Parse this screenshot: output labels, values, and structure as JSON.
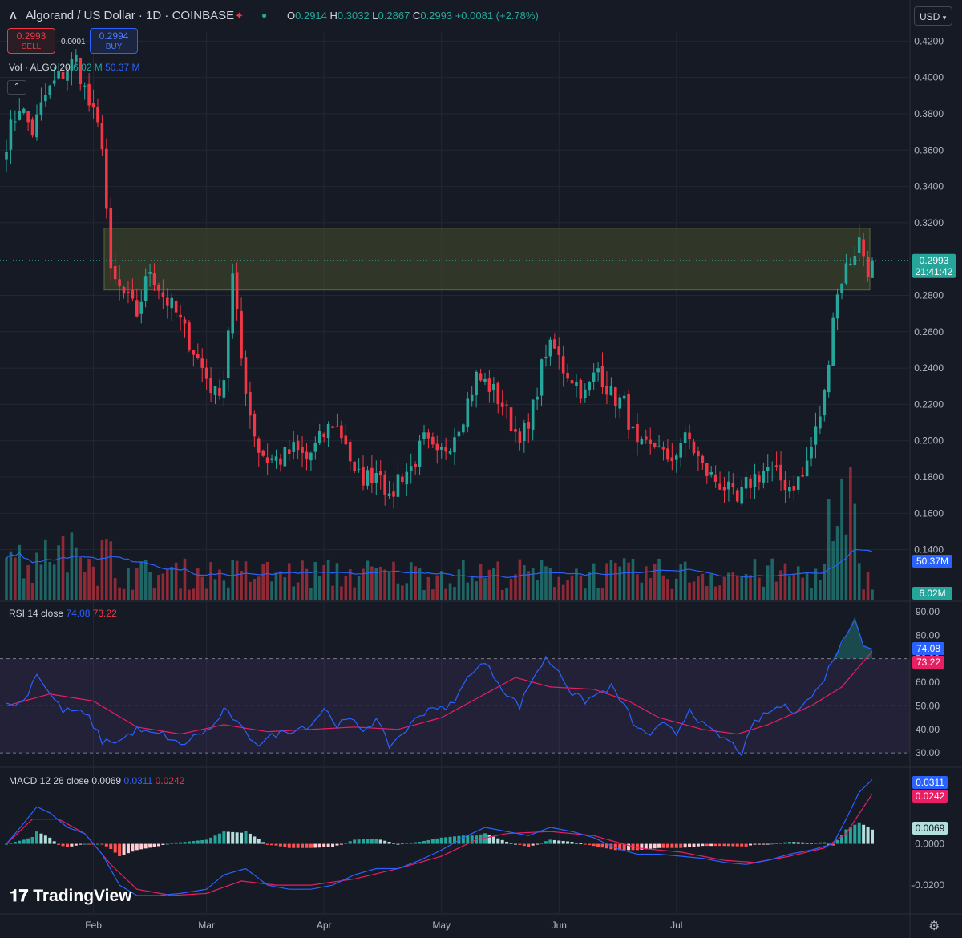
{
  "header": {
    "symbol_title": "Algorand / US Dollar · 1D · COINBASE",
    "ohlc": {
      "o_label": "O",
      "o": "0.2914",
      "h_label": "H",
      "h": "0.3032",
      "l_label": "L",
      "l": "0.2867",
      "c_label": "C",
      "c": "0.2993",
      "change": "+0.0081 (+2.78%)"
    },
    "currency": "USD"
  },
  "trade": {
    "sell_price": "0.2993",
    "sell_label": "SELL",
    "spread": "0.0001",
    "buy_price": "0.2994",
    "buy_label": "BUY"
  },
  "volume_legend": {
    "label": "Vol · ALGO 20",
    "value": "6.02 M",
    "ma": "50.37 M"
  },
  "rsi_legend": {
    "label": "RSI 14 close",
    "rsi": "74.08",
    "ma": "73.22"
  },
  "macd_legend": {
    "label": "MACD 12 26 close",
    "hist": "0.0069",
    "macd": "0.0311",
    "signal": "0.0242"
  },
  "price_labels": {
    "last": "0.2993",
    "countdown": "21:41:42",
    "vol_ma": "50.37M",
    "vol": "6.02M",
    "rsi": "74.08",
    "rsi_ma": "73.22",
    "macd": "0.0311",
    "signal": "0.0242",
    "hist": "0.0069"
  },
  "branding": "TradingView",
  "colors": {
    "background": "#161a25",
    "up": "#26a69a",
    "down": "#f23645",
    "rsi_line": "#2962ff",
    "rsi_ma": "#e91e63",
    "macd_line": "#2962ff",
    "signal_line": "#e91e63",
    "zone_fill": "#434a2c",
    "grid": "#232734"
  },
  "chart_data": [
    {
      "type": "candlestick",
      "title": "Algorand / US Dollar · 1D · COINBASE",
      "y_ticks": [
        "0.4200",
        "0.4000",
        "0.3800",
        "0.3600",
        "0.3400",
        "0.3200",
        "0.2800",
        "0.2600",
        "0.2400",
        "0.2200",
        "0.2000",
        "0.1800",
        "0.1600",
        "0.1400"
      ],
      "ylim": [
        0.135,
        0.425
      ],
      "x_ticks": [
        "Feb",
        "Mar",
        "Apr",
        "May",
        "Jun",
        "Jul"
      ],
      "supply_zone": [
        0.283,
        0.317
      ],
      "last_price": 0.2993,
      "close_anchors": [
        [
          0,
          0.365
        ],
        [
          3,
          0.385
        ],
        [
          6,
          0.37
        ],
        [
          9,
          0.39
        ],
        [
          12,
          0.4
        ],
        [
          16,
          0.41
        ],
        [
          19,
          0.385
        ],
        [
          22,
          0.365
        ],
        [
          24,
          0.29
        ],
        [
          27,
          0.28
        ],
        [
          30,
          0.27
        ],
        [
          33,
          0.295
        ],
        [
          36,
          0.28
        ],
        [
          39,
          0.27
        ],
        [
          42,
          0.255
        ],
        [
          45,
          0.24
        ],
        [
          48,
          0.225
        ],
        [
          50,
          0.235
        ],
        [
          52,
          0.29
        ],
        [
          54,
          0.245
        ],
        [
          56,
          0.215
        ],
        [
          58,
          0.195
        ],
        [
          60,
          0.19
        ],
        [
          63,
          0.19
        ],
        [
          66,
          0.195
        ],
        [
          69,
          0.19
        ],
        [
          72,
          0.2
        ],
        [
          75,
          0.21
        ],
        [
          78,
          0.2
        ],
        [
          80,
          0.18
        ],
        [
          83,
          0.18
        ],
        [
          86,
          0.185
        ],
        [
          88,
          0.165
        ],
        [
          90,
          0.18
        ],
        [
          93,
          0.185
        ],
        [
          96,
          0.2
        ],
        [
          99,
          0.19
        ],
        [
          102,
          0.2
        ],
        [
          105,
          0.215
        ],
        [
          108,
          0.235
        ],
        [
          111,
          0.23
        ],
        [
          114,
          0.22
        ],
        [
          117,
          0.205
        ],
        [
          120,
          0.205
        ],
        [
          122,
          0.23
        ],
        [
          124,
          0.25
        ],
        [
          126,
          0.25
        ],
        [
          128,
          0.24
        ],
        [
          130,
          0.235
        ],
        [
          133,
          0.225
        ],
        [
          136,
          0.24
        ],
        [
          139,
          0.225
        ],
        [
          142,
          0.22
        ],
        [
          145,
          0.195
        ],
        [
          148,
          0.195
        ],
        [
          150,
          0.2
        ],
        [
          152,
          0.185
        ],
        [
          155,
          0.2
        ],
        [
          157,
          0.2
        ],
        [
          160,
          0.185
        ],
        [
          162,
          0.18
        ],
        [
          165,
          0.175
        ],
        [
          168,
          0.165
        ],
        [
          170,
          0.175
        ],
        [
          172,
          0.18
        ],
        [
          175,
          0.185
        ],
        [
          177,
          0.18
        ],
        [
          180,
          0.175
        ],
        [
          183,
          0.18
        ],
        [
          186,
          0.205
        ],
        [
          188,
          0.225
        ],
        [
          190,
          0.27
        ],
        [
          192,
          0.29
        ],
        [
          194,
          0.3
        ],
        [
          196,
          0.31
        ],
        [
          198,
          0.295
        ],
        [
          199,
          0.2993
        ]
      ]
    },
    {
      "type": "bar",
      "title": "Vol · ALGO 20",
      "ma_last": "50.37M",
      "last": "6.02M"
    },
    {
      "type": "line",
      "title": "RSI 14 close",
      "y_ticks": [
        "90.00",
        "80.00",
        "70.00",
        "60.00",
        "50.00",
        "40.00",
        "30.00"
      ],
      "ylim": [
        28,
        92
      ],
      "band": [
        30,
        70
      ],
      "rsi_anchors": [
        [
          0,
          50
        ],
        [
          4,
          52
        ],
        [
          7,
          64
        ],
        [
          10,
          55
        ],
        [
          13,
          48
        ],
        [
          16,
          48
        ],
        [
          19,
          45
        ],
        [
          22,
          35
        ],
        [
          26,
          35
        ],
        [
          30,
          40
        ],
        [
          33,
          38
        ],
        [
          36,
          38
        ],
        [
          40,
          33
        ],
        [
          44,
          38
        ],
        [
          47,
          40
        ],
        [
          50,
          48
        ],
        [
          52,
          45
        ],
        [
          55,
          38
        ],
        [
          58,
          34
        ],
        [
          62,
          38
        ],
        [
          66,
          40
        ],
        [
          70,
          42
        ],
        [
          73,
          49
        ],
        [
          76,
          42
        ],
        [
          79,
          44
        ],
        [
          82,
          40
        ],
        [
          85,
          44
        ],
        [
          88,
          33
        ],
        [
          92,
          40
        ],
        [
          95,
          46
        ],
        [
          98,
          50
        ],
        [
          101,
          48
        ],
        [
          104,
          55
        ],
        [
          107,
          65
        ],
        [
          110,
          68
        ],
        [
          112,
          63
        ],
        [
          115,
          55
        ],
        [
          118,
          50
        ],
        [
          121,
          62
        ],
        [
          124,
          70
        ],
        [
          127,
          65
        ],
        [
          130,
          55
        ],
        [
          133,
          52
        ],
        [
          136,
          55
        ],
        [
          139,
          58
        ],
        [
          142,
          50
        ],
        [
          145,
          40
        ],
        [
          148,
          38
        ],
        [
          151,
          42
        ],
        [
          154,
          38
        ],
        [
          157,
          49
        ],
        [
          160,
          42
        ],
        [
          163,
          38
        ],
        [
          166,
          35
        ],
        [
          169,
          30
        ],
        [
          172,
          43
        ],
        [
          175,
          47
        ],
        [
          178,
          50
        ],
        [
          181,
          48
        ],
        [
          184,
          52
        ],
        [
          187,
          58
        ],
        [
          190,
          70
        ],
        [
          193,
          80
        ],
        [
          195,
          88
        ],
        [
          197,
          76
        ],
        [
          199,
          74.08
        ]
      ],
      "ma_anchors": [
        [
          0,
          50
        ],
        [
          10,
          55
        ],
        [
          20,
          52
        ],
        [
          30,
          41
        ],
        [
          40,
          38
        ],
        [
          50,
          42
        ],
        [
          60,
          39
        ],
        [
          70,
          40
        ],
        [
          80,
          41
        ],
        [
          90,
          40
        ],
        [
          100,
          45
        ],
        [
          110,
          55
        ],
        [
          117,
          62
        ],
        [
          125,
          58
        ],
        [
          135,
          57
        ],
        [
          143,
          52
        ],
        [
          150,
          45
        ],
        [
          160,
          40
        ],
        [
          168,
          38
        ],
        [
          175,
          42
        ],
        [
          185,
          50
        ],
        [
          192,
          58
        ],
        [
          199,
          73.22
        ]
      ]
    },
    {
      "type": "line",
      "title": "MACD 12 26 close",
      "y_ticks": [
        "0.0000",
        "-0.0200"
      ],
      "ylim": [
        -0.032,
        0.034
      ],
      "macd_anchors": [
        [
          0,
          0
        ],
        [
          4,
          0.01
        ],
        [
          7,
          0.018
        ],
        [
          10,
          0.015
        ],
        [
          14,
          0.008
        ],
        [
          18,
          0.005
        ],
        [
          22,
          -0.005
        ],
        [
          26,
          -0.02
        ],
        [
          30,
          -0.025
        ],
        [
          35,
          -0.025
        ],
        [
          40,
          -0.024
        ],
        [
          46,
          -0.022
        ],
        [
          50,
          -0.015
        ],
        [
          55,
          -0.012
        ],
        [
          60,
          -0.02
        ],
        [
          65,
          -0.022
        ],
        [
          70,
          -0.022
        ],
        [
          75,
          -0.02
        ],
        [
          80,
          -0.015
        ],
        [
          85,
          -0.012
        ],
        [
          90,
          -0.012
        ],
        [
          95,
          -0.008
        ],
        [
          100,
          -0.003
        ],
        [
          105,
          0.003
        ],
        [
          110,
          0.008
        ],
        [
          115,
          0.006
        ],
        [
          120,
          0.004
        ],
        [
          125,
          0.008
        ],
        [
          130,
          0.006
        ],
        [
          135,
          0.003
        ],
        [
          140,
          -0.002
        ],
        [
          145,
          -0.005
        ],
        [
          150,
          -0.005
        ],
        [
          155,
          -0.006
        ],
        [
          160,
          -0.007
        ],
        [
          165,
          -0.009
        ],
        [
          170,
          -0.01
        ],
        [
          175,
          -0.008
        ],
        [
          180,
          -0.005
        ],
        [
          185,
          -0.003
        ],
        [
          190,
          0.0
        ],
        [
          193,
          0.012
        ],
        [
          196,
          0.025
        ],
        [
          199,
          0.0311
        ]
      ],
      "signal_anchors": [
        [
          0,
          0
        ],
        [
          6,
          0.012
        ],
        [
          12,
          0.012
        ],
        [
          18,
          0.005
        ],
        [
          24,
          -0.01
        ],
        [
          30,
          -0.022
        ],
        [
          38,
          -0.025
        ],
        [
          46,
          -0.024
        ],
        [
          54,
          -0.018
        ],
        [
          62,
          -0.02
        ],
        [
          70,
          -0.02
        ],
        [
          80,
          -0.017
        ],
        [
          90,
          -0.012
        ],
        [
          100,
          -0.006
        ],
        [
          108,
          0.002
        ],
        [
          115,
          0.005
        ],
        [
          125,
          0.006
        ],
        [
          135,
          0.004
        ],
        [
          145,
          -0.002
        ],
        [
          155,
          -0.004
        ],
        [
          165,
          -0.008
        ],
        [
          172,
          -0.009
        ],
        [
          180,
          -0.006
        ],
        [
          188,
          -0.002
        ],
        [
          193,
          0.005
        ],
        [
          199,
          0.0242
        ]
      ]
    }
  ]
}
